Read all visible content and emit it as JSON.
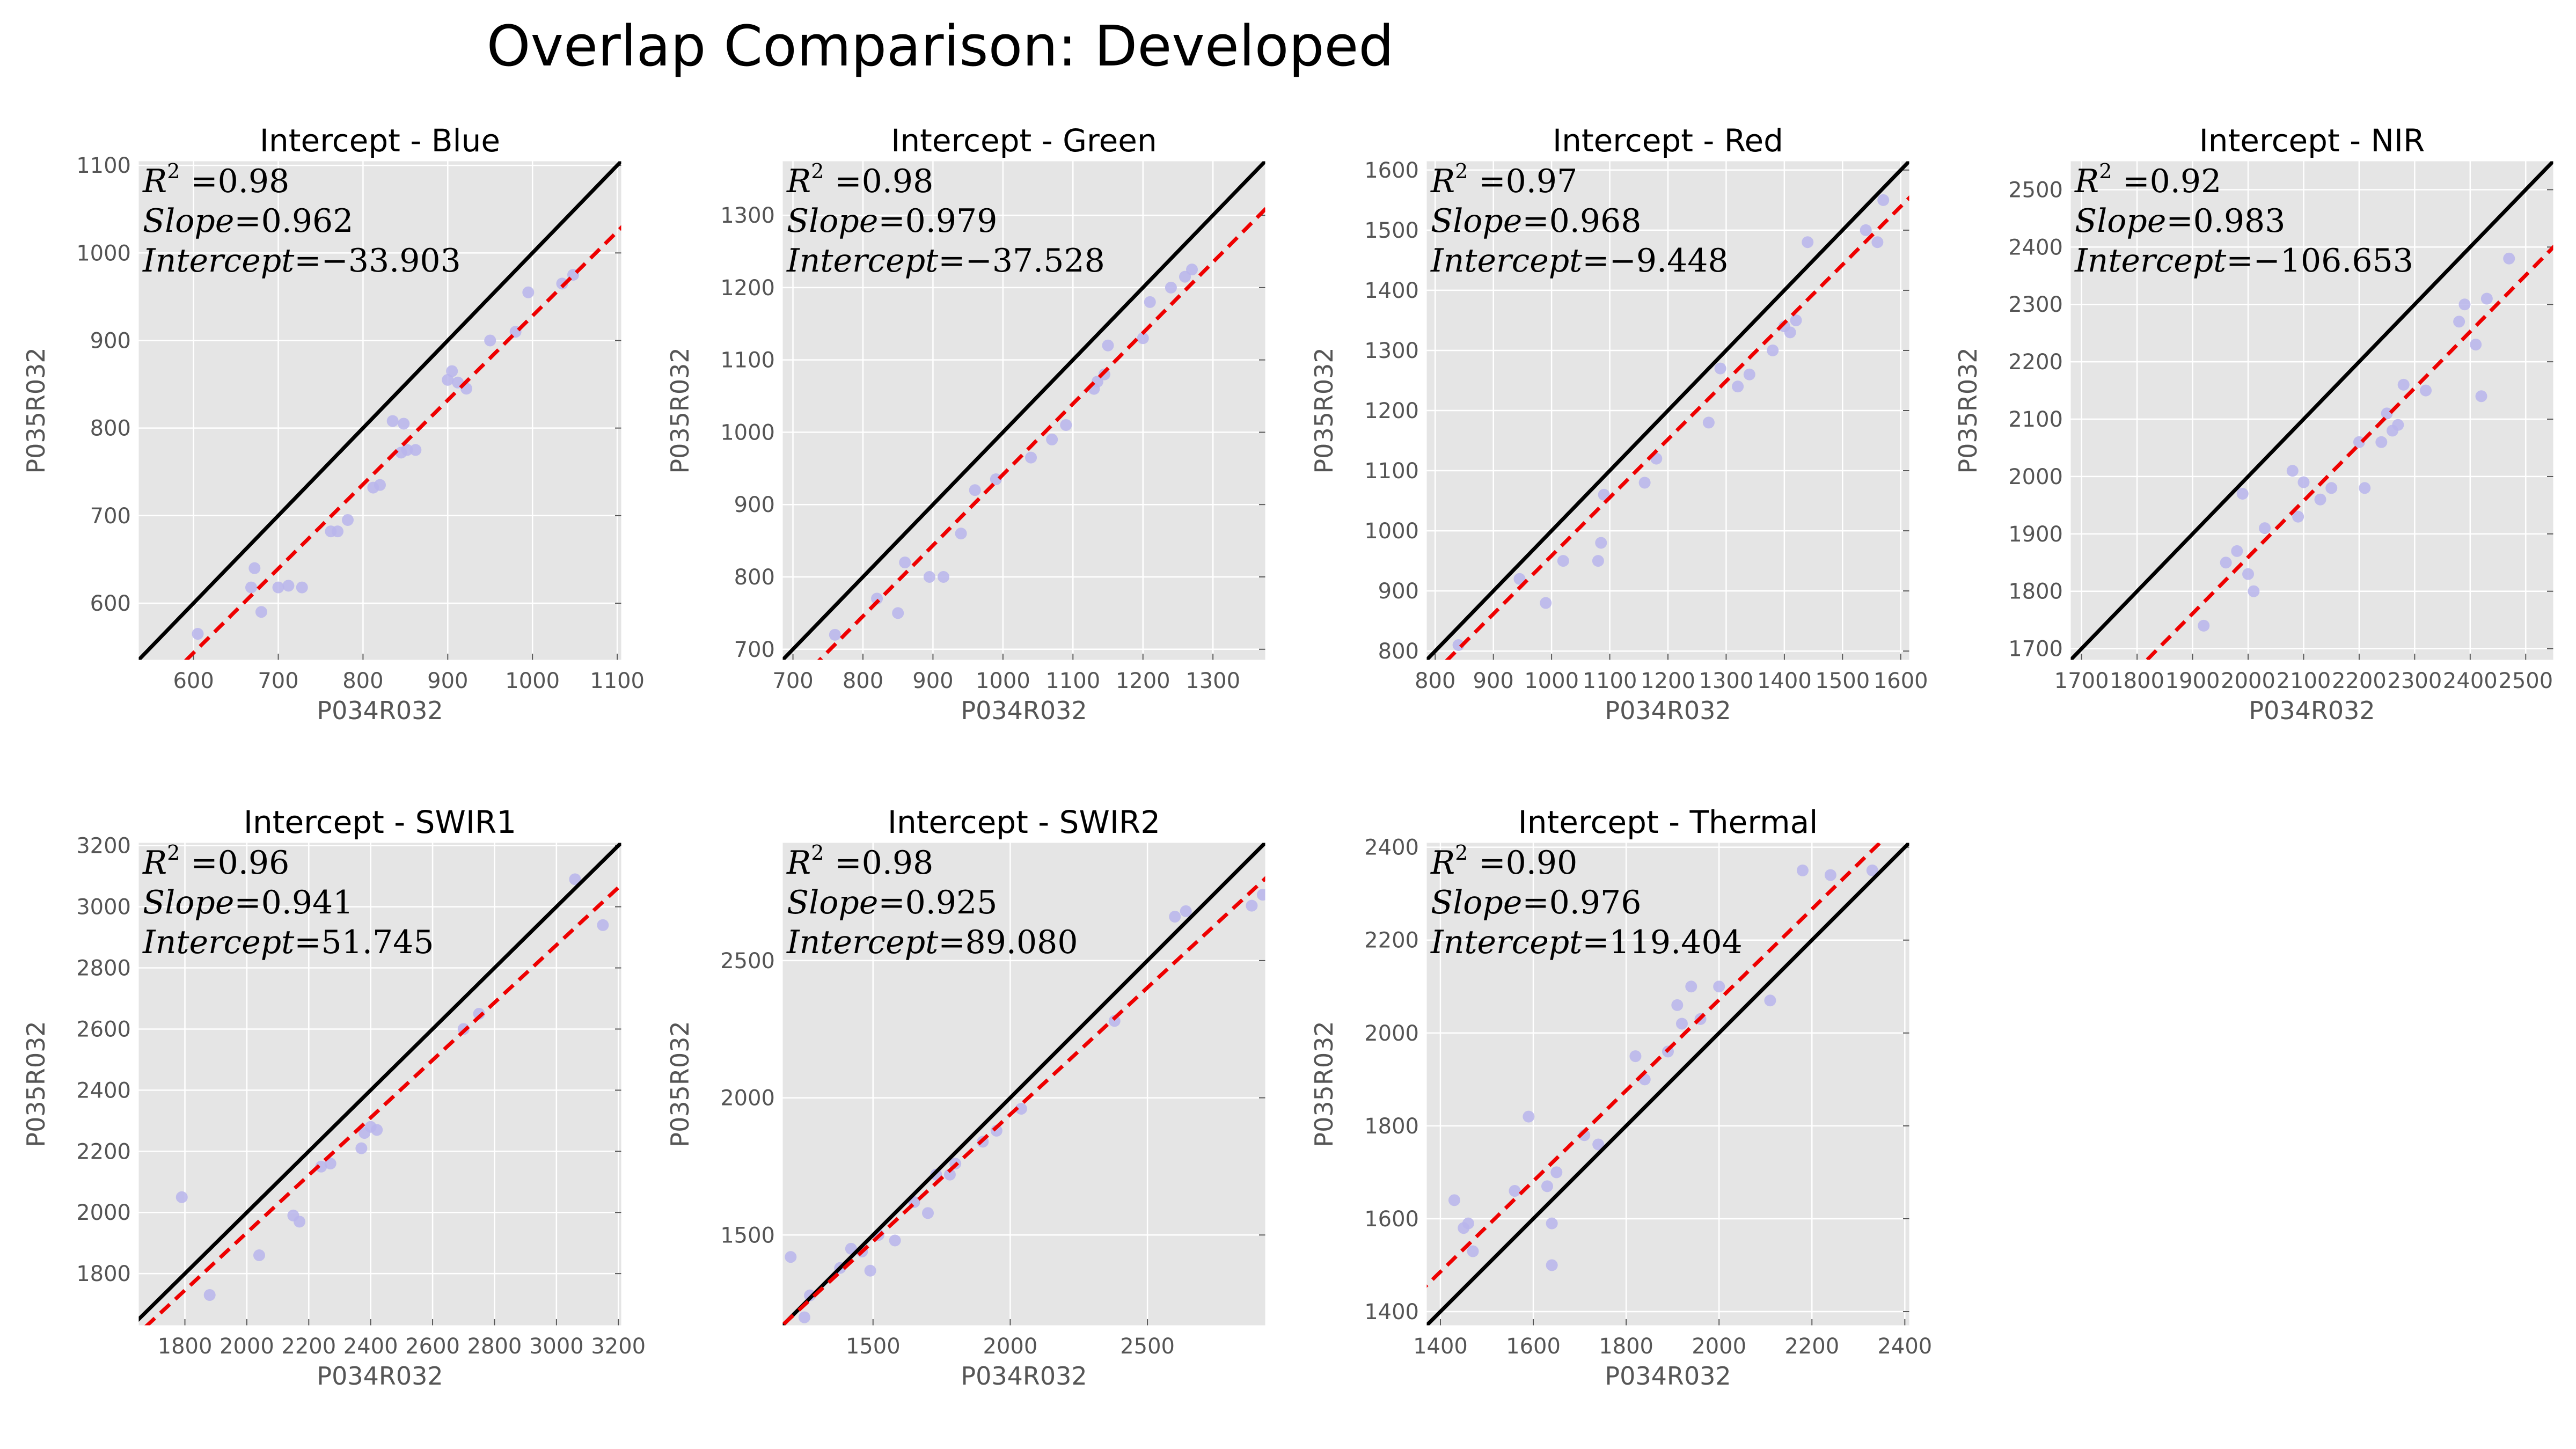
{
  "figure": {
    "title": "Overlap Comparison: Developed"
  },
  "colors": {
    "panel_bg": "#e5e5e5",
    "grid": "#ffffff",
    "identity_line": "#000000",
    "fit_line": "#ee0000",
    "points": "#b9b5ec",
    "tick_text": "#555555"
  },
  "chart_data": [
    {
      "type": "scatter",
      "title": "Intercept - Blue",
      "xlabel": "P034R032",
      "ylabel": "P035R032",
      "xlim": [
        535,
        1105
      ],
      "ylim": [
        535,
        1105
      ],
      "xticks": [
        "600",
        "700",
        "800",
        "900",
        "1000",
        "1100"
      ],
      "yticks": [
        "600",
        "700",
        "800",
        "900",
        "1000",
        "1100"
      ],
      "xtick_values": [
        600,
        700,
        800,
        900,
        1000,
        1100
      ],
      "ytick_values": [
        600,
        700,
        800,
        900,
        1000,
        1100
      ],
      "stats": {
        "r2": "0.98",
        "slope": "0.962",
        "intercept": "−33.903"
      },
      "slope": 0.962,
      "intercept": -33.903,
      "grid": true,
      "points": [
        [
          605,
          565
        ],
        [
          668,
          618
        ],
        [
          672,
          640
        ],
        [
          680,
          590
        ],
        [
          700,
          618
        ],
        [
          712,
          620
        ],
        [
          728,
          618
        ],
        [
          762,
          682
        ],
        [
          770,
          682
        ],
        [
          782,
          695
        ],
        [
          812,
          732
        ],
        [
          820,
          735
        ],
        [
          835,
          808
        ],
        [
          845,
          772
        ],
        [
          848,
          805
        ],
        [
          852,
          775
        ],
        [
          862,
          775
        ],
        [
          900,
          855
        ],
        [
          905,
          865
        ],
        [
          912,
          852
        ],
        [
          922,
          845
        ],
        [
          950,
          900
        ],
        [
          980,
          910
        ],
        [
          995,
          955
        ],
        [
          1035,
          965
        ],
        [
          1048,
          975
        ]
      ]
    },
    {
      "type": "scatter",
      "title": "Intercept - Green",
      "xlabel": "P034R032",
      "ylabel": "P035R032",
      "xlim": [
        685,
        1375
      ],
      "ylim": [
        685,
        1375
      ],
      "xticks": [
        "700",
        "800",
        "900",
        "1000",
        "1100",
        "1200",
        "1300"
      ],
      "yticks": [
        "700",
        "800",
        "900",
        "1000",
        "1100",
        "1200",
        "1300"
      ],
      "xtick_values": [
        700,
        800,
        900,
        1000,
        1100,
        1200,
        1300
      ],
      "ytick_values": [
        700,
        800,
        900,
        1000,
        1100,
        1200,
        1300
      ],
      "stats": {
        "r2": "0.98",
        "slope": "0.979",
        "intercept": "−37.528"
      },
      "slope": 0.979,
      "intercept": -37.528,
      "grid": true,
      "points": [
        [
          760,
          720
        ],
        [
          820,
          770
        ],
        [
          850,
          750
        ],
        [
          860,
          820
        ],
        [
          895,
          800
        ],
        [
          915,
          800
        ],
        [
          940,
          860
        ],
        [
          960,
          920
        ],
        [
          990,
          935
        ],
        [
          1040,
          965
        ],
        [
          1070,
          990
        ],
        [
          1090,
          1010
        ],
        [
          1130,
          1060
        ],
        [
          1135,
          1070
        ],
        [
          1145,
          1080
        ],
        [
          1150,
          1120
        ],
        [
          1200,
          1130
        ],
        [
          1210,
          1180
        ],
        [
          1240,
          1200
        ],
        [
          1260,
          1215
        ],
        [
          1270,
          1225
        ]
      ]
    },
    {
      "type": "scatter",
      "title": "Intercept - Red",
      "xlabel": "P034R032",
      "ylabel": "P035R032",
      "xlim": [
        785,
        1615
      ],
      "ylim": [
        785,
        1615
      ],
      "xticks": [
        "800",
        "900",
        "1000",
        "1100",
        "1200",
        "1300",
        "1400",
        "1500",
        "1600"
      ],
      "yticks": [
        "800",
        "900",
        "1000",
        "1100",
        "1200",
        "1300",
        "1400",
        "1500",
        "1600"
      ],
      "xtick_values": [
        800,
        900,
        1000,
        1100,
        1200,
        1300,
        1400,
        1500,
        1600
      ],
      "ytick_values": [
        800,
        900,
        1000,
        1100,
        1200,
        1300,
        1400,
        1500,
        1600
      ],
      "stats": {
        "r2": "0.97",
        "slope": "0.968",
        "intercept": "−9.448"
      },
      "slope": 0.968,
      "intercept": -9.448,
      "grid": true,
      "points": [
        [
          840,
          810
        ],
        [
          945,
          920
        ],
        [
          990,
          880
        ],
        [
          1020,
          950
        ],
        [
          1080,
          950
        ],
        [
          1085,
          980
        ],
        [
          1090,
          1060
        ],
        [
          1160,
          1080
        ],
        [
          1180,
          1120
        ],
        [
          1270,
          1180
        ],
        [
          1290,
          1270
        ],
        [
          1320,
          1240
        ],
        [
          1340,
          1260
        ],
        [
          1380,
          1300
        ],
        [
          1400,
          1340
        ],
        [
          1410,
          1330
        ],
        [
          1420,
          1350
        ],
        [
          1440,
          1480
        ],
        [
          1540,
          1500
        ],
        [
          1560,
          1480
        ],
        [
          1570,
          1550
        ]
      ]
    },
    {
      "type": "scatter",
      "title": "Intercept - NIR",
      "xlabel": "P034R032",
      "ylabel": "P035R032",
      "xlim": [
        1680,
        2550
      ],
      "ylim": [
        1680,
        2550
      ],
      "xticks": [
        "1700",
        "1800",
        "1900",
        "2000",
        "2100",
        "2200",
        "2300",
        "2400",
        "2500"
      ],
      "yticks": [
        "1700",
        "1800",
        "1900",
        "2000",
        "2100",
        "2200",
        "2300",
        "2400",
        "2500"
      ],
      "xtick_values": [
        1700,
        1800,
        1900,
        2000,
        2100,
        2200,
        2300,
        2400,
        2500
      ],
      "ytick_values": [
        1700,
        1800,
        1900,
        2000,
        2100,
        2200,
        2300,
        2400,
        2500
      ],
      "stats": {
        "r2": "0.92",
        "slope": "0.983",
        "intercept": "−106.653"
      },
      "slope": 0.983,
      "intercept": -106.653,
      "grid": true,
      "points": [
        [
          1920,
          1740
        ],
        [
          1960,
          1850
        ],
        [
          1980,
          1870
        ],
        [
          1990,
          1970
        ],
        [
          2000,
          1830
        ],
        [
          2010,
          1800
        ],
        [
          2030,
          1910
        ],
        [
          2080,
          2010
        ],
        [
          2090,
          1930
        ],
        [
          2100,
          1990
        ],
        [
          2130,
          1960
        ],
        [
          2150,
          1980
        ],
        [
          2200,
          2060
        ],
        [
          2210,
          1980
        ],
        [
          2240,
          2060
        ],
        [
          2250,
          2110
        ],
        [
          2260,
          2080
        ],
        [
          2270,
          2090
        ],
        [
          2280,
          2160
        ],
        [
          2320,
          2150
        ],
        [
          2380,
          2270
        ],
        [
          2390,
          2300
        ],
        [
          2410,
          2230
        ],
        [
          2420,
          2140
        ],
        [
          2430,
          2310
        ],
        [
          2470,
          2380
        ]
      ]
    },
    {
      "type": "scatter",
      "title": "Intercept - SWIR1",
      "xlabel": "P034R032",
      "ylabel": "P035R032",
      "xlim": [
        1650,
        3210
      ],
      "ylim": [
        1630,
        3210
      ],
      "xticks": [
        "1800",
        "2000",
        "2200",
        "2400",
        "2600",
        "2800",
        "3000",
        "3200"
      ],
      "yticks": [
        "1800",
        "2000",
        "2200",
        "2400",
        "2600",
        "2800",
        "3000",
        "3200"
      ],
      "xtick_values": [
        1800,
        2000,
        2200,
        2400,
        2600,
        2800,
        3000,
        3200
      ],
      "ytick_values": [
        1800,
        2000,
        2200,
        2400,
        2600,
        2800,
        3000,
        3200
      ],
      "stats": {
        "r2": "0.96",
        "slope": "0.941",
        "intercept": "51.745"
      },
      "slope": 0.941,
      "intercept": 51.745,
      "grid": true,
      "points": [
        [
          1790,
          2050
        ],
        [
          1880,
          1730
        ],
        [
          2040,
          1860
        ],
        [
          2150,
          1990
        ],
        [
          2170,
          1970
        ],
        [
          2240,
          2150
        ],
        [
          2270,
          2160
        ],
        [
          2370,
          2210
        ],
        [
          2380,
          2260
        ],
        [
          2400,
          2280
        ],
        [
          2420,
          2270
        ],
        [
          2700,
          2600
        ],
        [
          2750,
          2650
        ],
        [
          3060,
          3090
        ],
        [
          3150,
          2940
        ]
      ]
    },
    {
      "type": "scatter",
      "title": "Intercept - SWIR2",
      "xlabel": "P034R032",
      "ylabel": "P035R032",
      "xlim": [
        1170,
        2930
      ],
      "ylim": [
        1170,
        2930
      ],
      "xticks": [
        "1500",
        "2000",
        "2500"
      ],
      "yticks": [
        "1500",
        "2000",
        "2500"
      ],
      "xtick_values": [
        1500,
        2000,
        2500
      ],
      "ytick_values": [
        1500,
        2000,
        2500
      ],
      "stats": {
        "r2": "0.98",
        "slope": "0.925",
        "intercept": "89.080"
      },
      "slope": 0.925,
      "intercept": 89.08,
      "grid": true,
      "points": [
        [
          1200,
          1420
        ],
        [
          1250,
          1200
        ],
        [
          1270,
          1280
        ],
        [
          1380,
          1380
        ],
        [
          1420,
          1450
        ],
        [
          1460,
          1440
        ],
        [
          1490,
          1370
        ],
        [
          1520,
          1500
        ],
        [
          1580,
          1480
        ],
        [
          1650,
          1620
        ],
        [
          1700,
          1580
        ],
        [
          1730,
          1720
        ],
        [
          1780,
          1720
        ],
        [
          1800,
          1760
        ],
        [
          1900,
          1840
        ],
        [
          1950,
          1880
        ],
        [
          2040,
          1960
        ],
        [
          2380,
          2280
        ],
        [
          2600,
          2660
        ],
        [
          2640,
          2680
        ],
        [
          2880,
          2700
        ],
        [
          2920,
          2740
        ]
      ]
    },
    {
      "type": "scatter",
      "title": "Intercept - Thermal",
      "xlabel": "P034R032",
      "ylabel": "P035R032",
      "xlim": [
        1370,
        2410
      ],
      "ylim": [
        1370,
        2410
      ],
      "xticks": [
        "1400",
        "1600",
        "1800",
        "2000",
        "2200",
        "2400"
      ],
      "yticks": [
        "1400",
        "1600",
        "1800",
        "2000",
        "2200",
        "2400"
      ],
      "xtick_values": [
        1400,
        1600,
        1800,
        2000,
        2200,
        2400
      ],
      "ytick_values": [
        1400,
        1600,
        1800,
        2000,
        2200,
        2400
      ],
      "stats": {
        "r2": "0.90",
        "slope": "0.976",
        "intercept": "119.404"
      },
      "slope": 0.976,
      "intercept": 119.404,
      "grid": true,
      "points": [
        [
          1430,
          1640
        ],
        [
          1450,
          1580
        ],
        [
          1460,
          1590
        ],
        [
          1470,
          1530
        ],
        [
          1560,
          1660
        ],
        [
          1590,
          1820
        ],
        [
          1630,
          1670
        ],
        [
          1640,
          1590
        ],
        [
          1640,
          1500
        ],
        [
          1650,
          1700
        ],
        [
          1710,
          1780
        ],
        [
          1740,
          1760
        ],
        [
          1820,
          1950
        ],
        [
          1840,
          1900
        ],
        [
          1890,
          1960
        ],
        [
          1910,
          2060
        ],
        [
          1920,
          2020
        ],
        [
          1940,
          2100
        ],
        [
          1960,
          2030
        ],
        [
          2000,
          2100
        ],
        [
          2110,
          2070
        ],
        [
          2180,
          2350
        ],
        [
          2240,
          2340
        ],
        [
          2330,
          2350
        ]
      ]
    }
  ]
}
